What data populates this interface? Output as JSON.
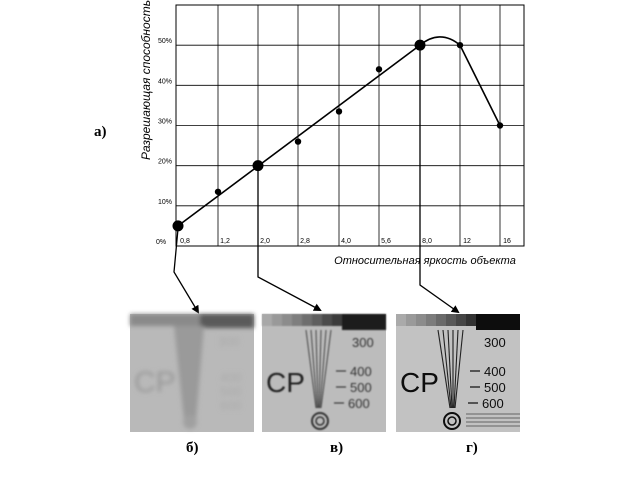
{
  "figure_label": "а)",
  "chart_data": {
    "type": "scatter",
    "ylabel": "Разрешающая способность",
    "xlabel": "Относительная яркость объекта",
    "x_ticks": [
      "0,8",
      "1,2",
      "2,0",
      "2,8",
      "4,0",
      "5,6",
      "8,0",
      "12",
      "16"
    ],
    "y_ticks": [
      "0%",
      "10%",
      "20%",
      "30%",
      "40%",
      "50%"
    ],
    "ylim": [
      0,
      60
    ],
    "grid": true,
    "points": [
      {
        "x": "0,8",
        "y": 5,
        "highlight": true
      },
      {
        "x": "1,2",
        "y": 13.5,
        "highlight": false
      },
      {
        "x": "2,0",
        "y": 20,
        "highlight": true
      },
      {
        "x": "2,8",
        "y": 26,
        "highlight": false
      },
      {
        "x": "4,0",
        "y": 33.5,
        "highlight": false
      },
      {
        "x": "5,6",
        "y": 44,
        "highlight": false
      },
      {
        "x": "8,0",
        "y": 50,
        "highlight": true
      },
      {
        "x": "12",
        "y": 50,
        "highlight": false
      },
      {
        "x": "16",
        "y": 30,
        "highlight": false
      }
    ]
  },
  "photos": [
    {
      "letter": "б)",
      "text": "CP",
      "numbers": [
        "300",
        "400",
        "500",
        "600"
      ]
    },
    {
      "letter": "в)",
      "text": "CP",
      "numbers": [
        "300",
        "400",
        "500",
        "600"
      ]
    },
    {
      "letter": "г)",
      "text": "CP",
      "numbers": [
        "300",
        "400",
        "500",
        "600"
      ]
    }
  ]
}
